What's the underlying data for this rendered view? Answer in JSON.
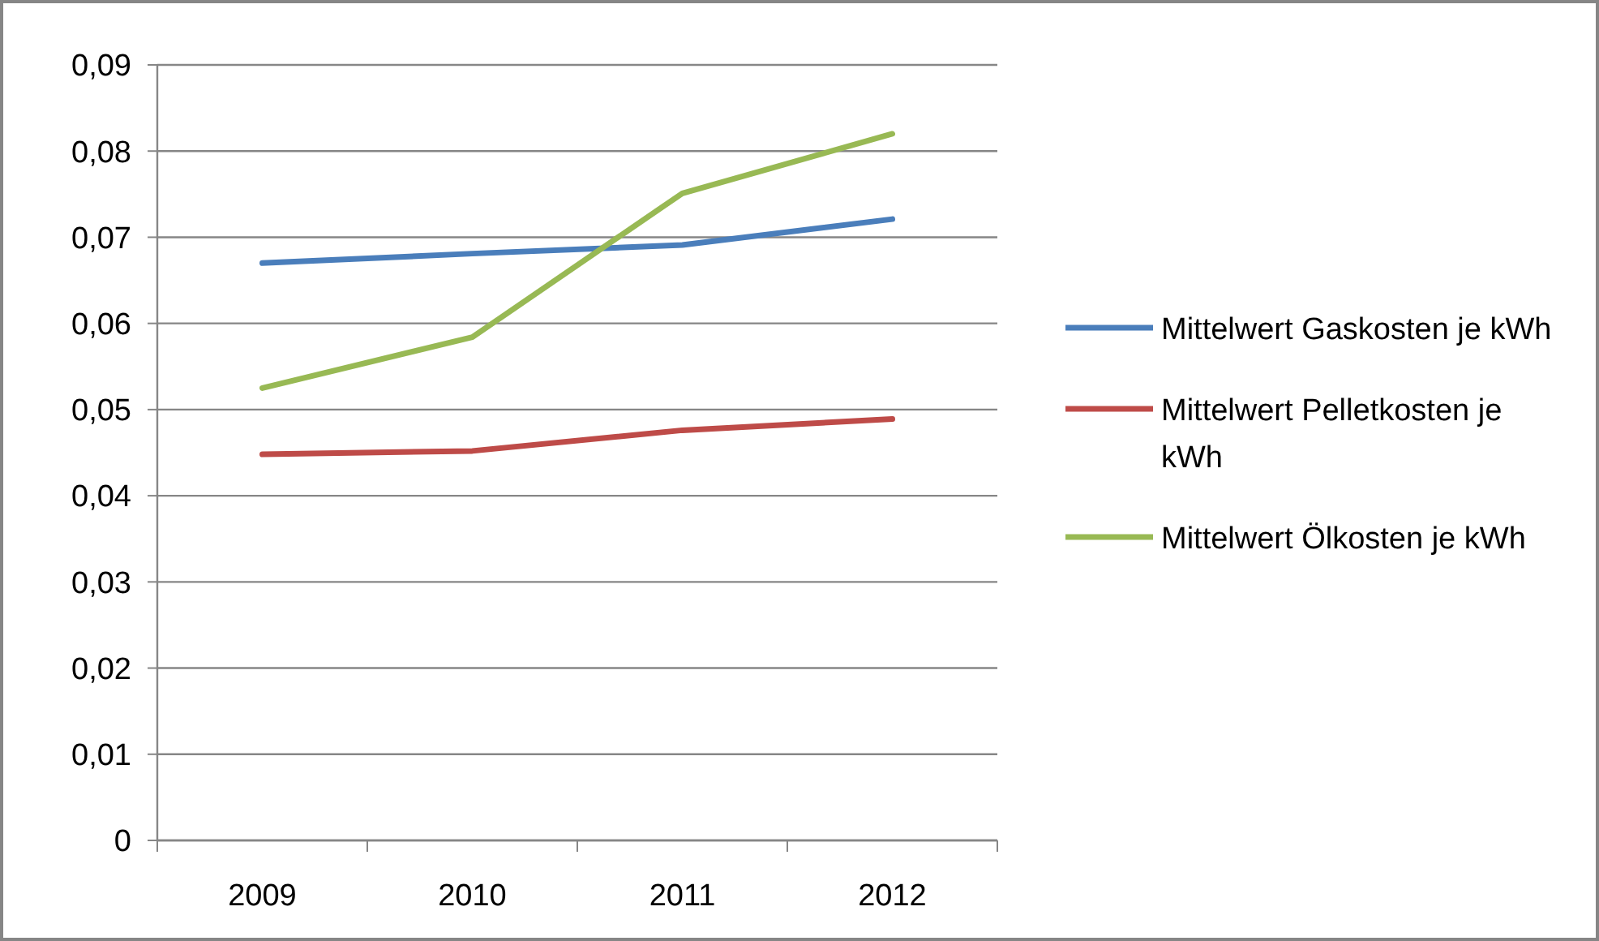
{
  "chart_data": {
    "type": "line",
    "categories": [
      "2009",
      "2010",
      "2011",
      "2012"
    ],
    "series": [
      {
        "name": "Mittelwert Gaskosten je kWh",
        "color": "#4a7ebb",
        "values": [
          0.067,
          0.0681,
          0.0691,
          0.0721
        ]
      },
      {
        "name": "Mittelwert Pelletkosten je kWh",
        "color": "#be4b48",
        "values": [
          0.0448,
          0.0452,
          0.0476,
          0.0489
        ]
      },
      {
        "name": "Mittelwert Ölkosten je kWh",
        "color": "#98b954",
        "values": [
          0.0525,
          0.0584,
          0.0751,
          0.082
        ]
      }
    ],
    "ylim": [
      0,
      0.09
    ],
    "yticks": [
      {
        "value": 0,
        "label": "0"
      },
      {
        "value": 0.01,
        "label": "0,01"
      },
      {
        "value": 0.02,
        "label": "0,02"
      },
      {
        "value": 0.03,
        "label": "0,03"
      },
      {
        "value": 0.04,
        "label": "0,04"
      },
      {
        "value": 0.05,
        "label": "0,05"
      },
      {
        "value": 0.06,
        "label": "0,06"
      },
      {
        "value": 0.07,
        "label": "0,07"
      },
      {
        "value": 0.08,
        "label": "0,08"
      },
      {
        "value": 0.09,
        "label": "0,09"
      }
    ],
    "grid": "y",
    "legend": "right",
    "marker": "none",
    "line_style": "solid"
  }
}
